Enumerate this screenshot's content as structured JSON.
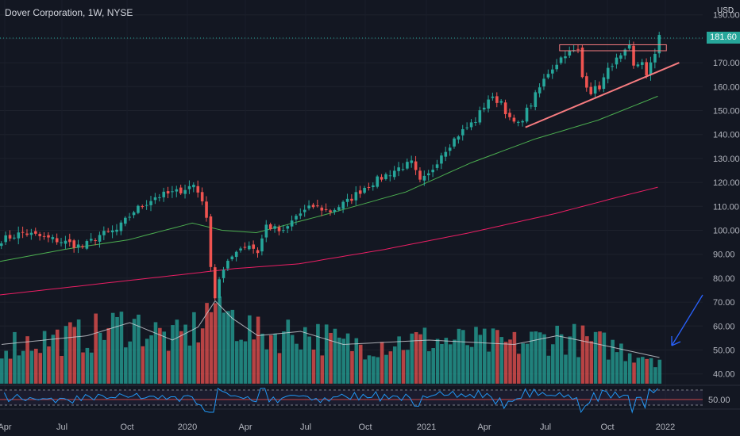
{
  "header": {
    "title": "Dover Corporation, 1W, NYSE",
    "currency": "USD"
  },
  "last_price_label": "181.60",
  "rsi_label": "50.00",
  "colors": {
    "background": "#131722",
    "up": "#26a69a",
    "down": "#ef5350",
    "ma_short": "#4caf50",
    "ma_long": "#e91e63",
    "annotation_line": "#f77c80",
    "arrow": "#2962ff",
    "rsi_line": "#2196f3"
  },
  "chart_data": {
    "type": "candlestick",
    "title": "Dover Corporation, 1W, NYSE",
    "y_axis": {
      "ticks": [
        "190.00",
        "180.00",
        "170.00",
        "160.00",
        "150.00",
        "140.00",
        "130.00",
        "120.00",
        "110.00",
        "100.00",
        "90.00",
        "80.00",
        "70.00",
        "60.00",
        "50.00",
        "40.00"
      ],
      "ylim": [
        37,
        190
      ]
    },
    "x_axis": {
      "ticks": [
        "Apr",
        "Jul",
        "Oct",
        "2020",
        "Apr",
        "Jul",
        "Oct",
        "2021",
        "Apr",
        "Jul",
        "Oct",
        "2022"
      ]
    },
    "price_close_anchors": [
      {
        "week": 0,
        "close": 96
      },
      {
        "week": 5,
        "close": 99
      },
      {
        "week": 10,
        "close": 97
      },
      {
        "week": 15,
        "close": 95
      },
      {
        "week": 19,
        "close": 93
      },
      {
        "week": 23,
        "close": 98
      },
      {
        "week": 27,
        "close": 100
      },
      {
        "week": 31,
        "close": 108
      },
      {
        "week": 36,
        "close": 114
      },
      {
        "week": 41,
        "close": 116
      },
      {
        "week": 45,
        "close": 119
      },
      {
        "week": 47,
        "close": 113
      },
      {
        "week": 48,
        "close": 104
      },
      {
        "week": 49,
        "close": 86
      },
      {
        "week": 50,
        "close": 72
      },
      {
        "week": 51,
        "close": 80
      },
      {
        "week": 53,
        "close": 86
      },
      {
        "week": 55,
        "close": 92
      },
      {
        "week": 58,
        "close": 94
      },
      {
        "week": 60,
        "close": 91
      },
      {
        "week": 62,
        "close": 102
      },
      {
        "week": 66,
        "close": 99
      },
      {
        "week": 69,
        "close": 106
      },
      {
        "week": 73,
        "close": 110
      },
      {
        "week": 77,
        "close": 108
      },
      {
        "week": 81,
        "close": 112
      },
      {
        "week": 85,
        "close": 118
      },
      {
        "week": 89,
        "close": 122
      },
      {
        "week": 93,
        "close": 126
      },
      {
        "week": 96,
        "close": 128
      },
      {
        "week": 98,
        "close": 120
      },
      {
        "week": 100,
        "close": 123
      },
      {
        "week": 103,
        "close": 132
      },
      {
        "week": 107,
        "close": 140
      },
      {
        "week": 111,
        "close": 146
      },
      {
        "week": 114,
        "close": 155
      },
      {
        "week": 117,
        "close": 154
      },
      {
        "week": 119,
        "close": 146
      },
      {
        "week": 121,
        "close": 144
      },
      {
        "week": 124,
        "close": 153
      },
      {
        "week": 128,
        "close": 166
      },
      {
        "week": 132,
        "close": 174
      },
      {
        "week": 135,
        "close": 175
      },
      {
        "week": 136,
        "close": 164
      },
      {
        "week": 138,
        "close": 158
      },
      {
        "week": 140,
        "close": 160
      },
      {
        "week": 143,
        "close": 170
      },
      {
        "week": 145,
        "close": 172
      },
      {
        "week": 147,
        "close": 176
      },
      {
        "week": 148,
        "close": 168
      },
      {
        "week": 150,
        "close": 171
      },
      {
        "week": 151,
        "close": 164
      },
      {
        "week": 153,
        "close": 174
      },
      {
        "week": 154,
        "close": 181.6
      }
    ],
    "ma_short_anchors": [
      {
        "week": 0,
        "value": 87
      },
      {
        "week": 15,
        "value": 92
      },
      {
        "week": 30,
        "value": 96
      },
      {
        "week": 45,
        "value": 103
      },
      {
        "week": 52,
        "value": 100
      },
      {
        "week": 60,
        "value": 99
      },
      {
        "week": 75,
        "value": 106
      },
      {
        "week": 95,
        "value": 116
      },
      {
        "week": 110,
        "value": 128
      },
      {
        "week": 125,
        "value": 138
      },
      {
        "week": 140,
        "value": 146
      },
      {
        "week": 154,
        "value": 156
      }
    ],
    "ma_long_anchors": [
      {
        "week": 0,
        "value": 73
      },
      {
        "week": 20,
        "value": 77
      },
      {
        "week": 40,
        "value": 81
      },
      {
        "week": 55,
        "value": 84
      },
      {
        "week": 70,
        "value": 86
      },
      {
        "week": 90,
        "value": 92
      },
      {
        "week": 110,
        "value": 99
      },
      {
        "week": 130,
        "value": 107
      },
      {
        "week": 145,
        "value": 114
      },
      {
        "week": 154,
        "value": 118
      }
    ],
    "volume_anchors": [
      {
        "week": 0,
        "level": 0.45
      },
      {
        "week": 10,
        "level": 0.5
      },
      {
        "week": 20,
        "level": 0.55
      },
      {
        "week": 30,
        "level": 0.7
      },
      {
        "week": 40,
        "level": 0.5
      },
      {
        "week": 46,
        "level": 0.65
      },
      {
        "week": 50,
        "level": 0.95
      },
      {
        "week": 54,
        "level": 0.75
      },
      {
        "week": 60,
        "level": 0.55
      },
      {
        "week": 70,
        "level": 0.6
      },
      {
        "week": 80,
        "level": 0.45
      },
      {
        "week": 100,
        "level": 0.5
      },
      {
        "week": 120,
        "level": 0.45
      },
      {
        "week": 130,
        "level": 0.55
      },
      {
        "week": 140,
        "level": 0.45
      },
      {
        "week": 154,
        "level": 0.3
      }
    ],
    "resistance_level": [
      175,
      177.5
    ],
    "support_trendline": [
      {
        "week": 123,
        "price": 143
      },
      {
        "week": 159,
        "price": 170
      }
    ]
  }
}
